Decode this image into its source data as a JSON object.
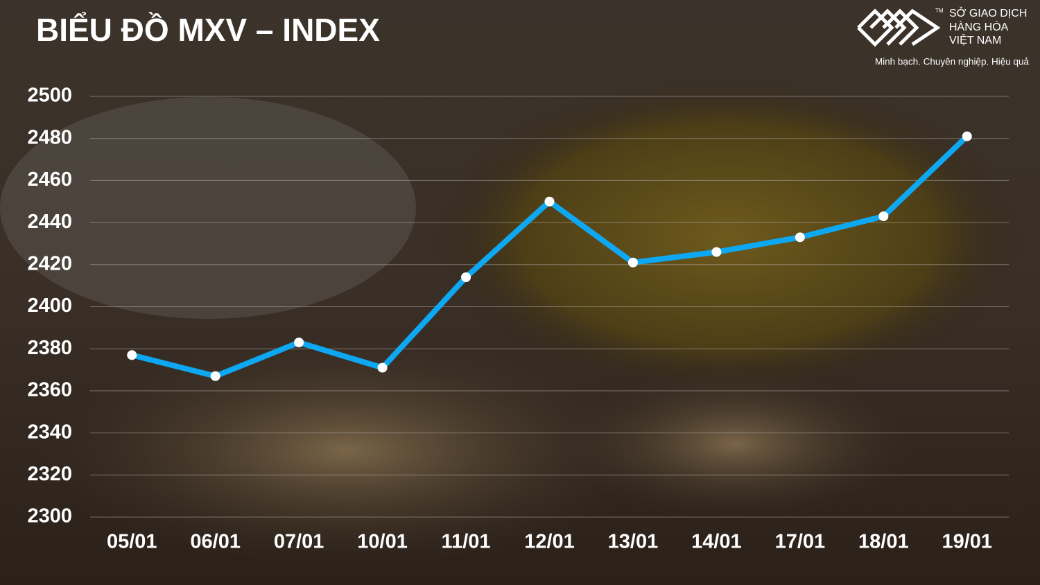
{
  "chart_data": {
    "type": "line",
    "title": "BIỂU ĐỒ MXV – INDEX",
    "categories": [
      "05/01",
      "06/01",
      "07/01",
      "10/01",
      "11/01",
      "12/01",
      "13/01",
      "14/01",
      "17/01",
      "18/01",
      "19/01"
    ],
    "series": [
      {
        "color": "#0ea8f2",
        "values": [
          2377,
          2367,
          2383,
          2371,
          2414,
          2450,
          2421,
          2426,
          2433,
          2443,
          2481
        ]
      }
    ],
    "ylim": [
      2300,
      2500
    ],
    "yticks": [
      2300,
      2320,
      2340,
      2360,
      2380,
      2400,
      2420,
      2440,
      2460,
      2480,
      2500
    ],
    "grid": true
  },
  "logo": {
    "lines": [
      "SỞ GIAO DỊCH",
      "HÀNG HÓA",
      "VIỆT NAM"
    ],
    "trademark": "TM",
    "slogan": "Minh bạch. Chuyên nghiệp. Hiệu quả"
  }
}
